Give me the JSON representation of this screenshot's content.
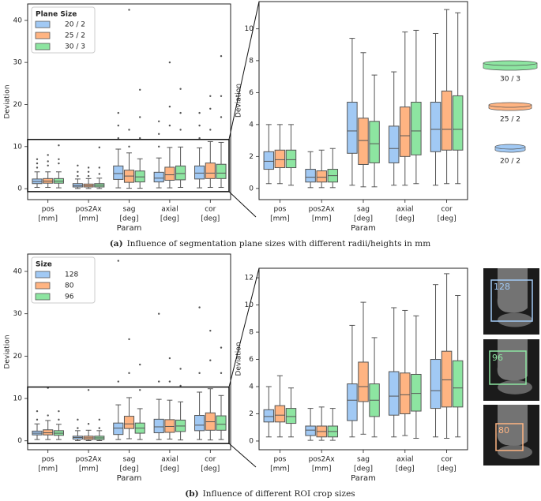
{
  "chart_data": [
    {
      "type": "box",
      "ylabel": "Deviation",
      "xlabel": "Param",
      "categories": [
        [
          "pos",
          "[mm]"
        ],
        [
          "pos2Ax",
          "[mm]"
        ],
        [
          "sag",
          "[deg]"
        ],
        [
          "axial",
          "[deg]"
        ],
        [
          "cor",
          "[deg]"
        ]
      ],
      "legend_title": "Plane Size",
      "legend_loc": "upper left",
      "ylim": [
        -2.6,
        43.9
      ],
      "yticks": [
        0,
        10,
        20,
        30,
        40
      ],
      "zoom": {
        "ylim": [
          -0.7,
          11.7
        ],
        "yticks": [
          0,
          2,
          4,
          6,
          8,
          10
        ]
      },
      "series": [
        {
          "name": "20 / 2",
          "color": "#a1c9f4",
          "values": [
            {
              "whislo": 0.3,
              "q1": 1.2,
              "med": 1.7,
              "q3": 2.3,
              "whishi": 4.0
            },
            {
              "whislo": 0.05,
              "q1": 0.4,
              "med": 0.7,
              "q3": 1.2,
              "whishi": 2.3
            },
            {
              "whislo": 0.2,
              "q1": 2.2,
              "med": 3.6,
              "q3": 5.4,
              "whishi": 9.4
            },
            {
              "whislo": 0.2,
              "q1": 1.6,
              "med": 2.5,
              "q3": 3.9,
              "whishi": 7.3
            },
            {
              "whislo": 0.2,
              "q1": 2.3,
              "med": 3.7,
              "q3": 5.4,
              "whishi": 9.7
            }
          ],
          "outliers": [
            [
              5,
              6,
              7
            ],
            [
              3,
              4,
              5.5
            ],
            [
              12,
              15,
              18
            ],
            [
              10,
              13,
              16
            ],
            [
              12,
              15,
              18
            ]
          ]
        },
        {
          "name": "25 / 2",
          "color": "#ffb482",
          "values": [
            {
              "whislo": 0.3,
              "q1": 1.3,
              "med": 1.8,
              "q3": 2.4,
              "whishi": 4.0
            },
            {
              "whislo": 0.05,
              "q1": 0.4,
              "med": 0.7,
              "q3": 1.1,
              "whishi": 2.4
            },
            {
              "whislo": 0.1,
              "q1": 1.5,
              "med": 3.0,
              "q3": 4.4,
              "whishi": 8.5
            },
            {
              "whislo": 0.2,
              "q1": 2.0,
              "med": 3.3,
              "q3": 5.1,
              "whishi": 9.8
            },
            {
              "whislo": 0.3,
              "q1": 2.4,
              "med": 3.7,
              "q3": 6.1,
              "whishi": 11.2
            }
          ],
          "outliers": [
            [
              5.5,
              6.5,
              8
            ],
            [
              3,
              4,
              5
            ],
            [
              10,
              14,
              42.5
            ],
            [
              15,
              19.5,
              30
            ],
            [
              14,
              19,
              22
            ]
          ]
        },
        {
          "name": "30 / 3",
          "color": "#8de5a1",
          "values": [
            {
              "whislo": 0.2,
              "q1": 1.3,
              "med": 1.8,
              "q3": 2.4,
              "whishi": 4.0
            },
            {
              "whislo": 0.05,
              "q1": 0.4,
              "med": 0.8,
              "q3": 1.2,
              "whishi": 2.5
            },
            {
              "whislo": 0.1,
              "q1": 1.6,
              "med": 2.8,
              "q3": 4.2,
              "whishi": 7.1
            },
            {
              "whislo": 0.3,
              "q1": 2.1,
              "med": 3.6,
              "q3": 5.4,
              "whishi": 9.9
            },
            {
              "whislo": 0.3,
              "q1": 2.4,
              "med": 3.7,
              "q3": 5.8,
              "whishi": 11.0
            }
          ],
          "outliers": [
            [
              6,
              7,
              10.3
            ],
            [
              3.5,
              5,
              9.8
            ],
            [
              12,
              17,
              23.5
            ],
            [
              14,
              18,
              23.7
            ],
            [
              17,
              22,
              31.5
            ]
          ]
        }
      ],
      "caption_label": "(a)",
      "caption": "Influence of segmentation plane sizes with different radii/heights in mm"
    },
    {
      "type": "box",
      "ylabel": "Deviation",
      "xlabel": "Param",
      "categories": [
        [
          "pos",
          "[mm]"
        ],
        [
          "pos2Ax",
          "[mm]"
        ],
        [
          "sag",
          "[deg]"
        ],
        [
          "axial",
          "[deg]"
        ],
        [
          "cor",
          "[deg]"
        ]
      ],
      "legend_title": "Size",
      "legend_loc": "upper left",
      "ylim": [
        -2.1,
        44.1
      ],
      "yticks": [
        0,
        10,
        20,
        30,
        40
      ],
      "zoom": {
        "ylim": [
          -0.64,
          12.7
        ],
        "yticks": [
          0,
          2,
          4,
          6,
          8,
          10,
          12
        ]
      },
      "series": [
        {
          "name": "128",
          "color": "#a1c9f4",
          "values": [
            {
              "whislo": 0.3,
              "q1": 1.4,
              "med": 1.8,
              "q3": 2.3,
              "whishi": 4.0
            },
            {
              "whislo": 0.05,
              "q1": 0.4,
              "med": 0.8,
              "q3": 1.1,
              "whishi": 2.4
            },
            {
              "whislo": 0.3,
              "q1": 1.5,
              "med": 3.0,
              "q3": 4.2,
              "whishi": 8.5
            },
            {
              "whislo": 0.3,
              "q1": 1.9,
              "med": 3.3,
              "q3": 5.1,
              "whishi": 9.8
            },
            {
              "whislo": 0.3,
              "q1": 2.4,
              "med": 3.7,
              "q3": 6.0,
              "whishi": 11.5
            }
          ],
          "outliers": [
            [
              5,
              7
            ],
            [
              3,
              5
            ],
            [
              14,
              42.5
            ],
            [
              14,
              30
            ],
            [
              16,
              31.5
            ]
          ]
        },
        {
          "name": "80",
          "color": "#ffb482",
          "values": [
            {
              "whislo": 0.3,
              "q1": 1.4,
              "med": 1.9,
              "q3": 2.6,
              "whishi": 4.8
            },
            {
              "whislo": 0.05,
              "q1": 0.3,
              "med": 0.7,
              "q3": 1.1,
              "whishi": 2.5
            },
            {
              "whislo": 0.5,
              "q1": 2.9,
              "med": 4.0,
              "q3": 5.8,
              "whishi": 10.2
            },
            {
              "whislo": 0.4,
              "q1": 2.0,
              "med": 3.4,
              "q3": 5.0,
              "whishi": 9.6
            },
            {
              "whislo": 0.2,
              "q1": 2.5,
              "med": 4.5,
              "q3": 6.6,
              "whishi": 12.3
            }
          ],
          "outliers": [
            [
              6,
              12.5
            ],
            [
              4,
              12
            ],
            [
              16,
              24
            ],
            [
              14,
              19.5
            ],
            [
              19,
              26
            ]
          ]
        },
        {
          "name": "96",
          "color": "#8de5a1",
          "values": [
            {
              "whislo": 0.3,
              "q1": 1.3,
              "med": 1.8,
              "q3": 2.4,
              "whishi": 3.9
            },
            {
              "whislo": 0.05,
              "q1": 0.3,
              "med": 0.7,
              "q3": 1.1,
              "whishi": 2.4
            },
            {
              "whislo": 0.3,
              "q1": 1.8,
              "med": 3.0,
              "q3": 4.2,
              "whishi": 7.6
            },
            {
              "whislo": 0.2,
              "q1": 2.2,
              "med": 3.5,
              "q3": 4.9,
              "whishi": 9.2
            },
            {
              "whislo": 0.3,
              "q1": 2.5,
              "med": 3.9,
              "q3": 5.9,
              "whishi": 10.7
            }
          ],
          "outliers": [
            [
              5,
              7
            ],
            [
              3,
              5
            ],
            [
              12,
              18
            ],
            [
              13,
              17
            ],
            [
              16,
              22
            ]
          ]
        }
      ],
      "caption_label": "(b)",
      "caption": "Influence of different ROI crop sizes"
    }
  ]
}
